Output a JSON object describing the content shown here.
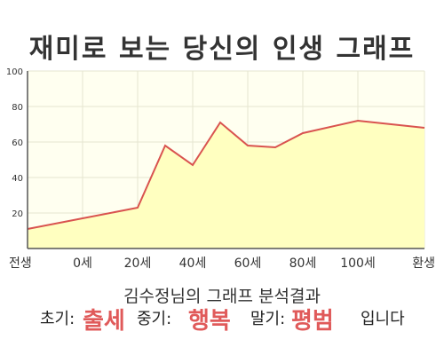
{
  "title": "재미로 보는 당신의 인생 그래프",
  "chart_data": {
    "type": "area",
    "title": "재미로 보는 당신의 인생 그래프",
    "xlabel": "",
    "ylabel": "",
    "x_tick_labels": [
      "전생",
      "0세",
      "20세",
      "40세",
      "60세",
      "80세",
      "100세",
      "환생"
    ],
    "y_ticks": [
      20,
      40,
      60,
      80,
      100
    ],
    "ylim": [
      0,
      100
    ],
    "grid": true,
    "legend": "none",
    "series": [
      {
        "x": [
          "전생",
          "0세",
          "20세",
          "30세",
          "40세",
          "50세",
          "60세",
          "70세",
          "80세",
          "100세",
          "환생"
        ],
        "values": [
          11,
          17,
          23,
          58,
          47,
          71,
          58,
          57,
          65,
          72,
          68
        ]
      }
    ],
    "colors": {
      "line": "#d9534f",
      "fill": "#ffffc0",
      "plot_bg": "#fffff0",
      "grid": "#e6e6d0"
    }
  },
  "result": {
    "title": "김수정님의 그래프 분석결과",
    "early_label": "초기:",
    "early_value": "출세",
    "middle_label": "중기:",
    "middle_value": "행복",
    "late_label": "말기:",
    "late_value": "평범",
    "ending": "입니다"
  }
}
